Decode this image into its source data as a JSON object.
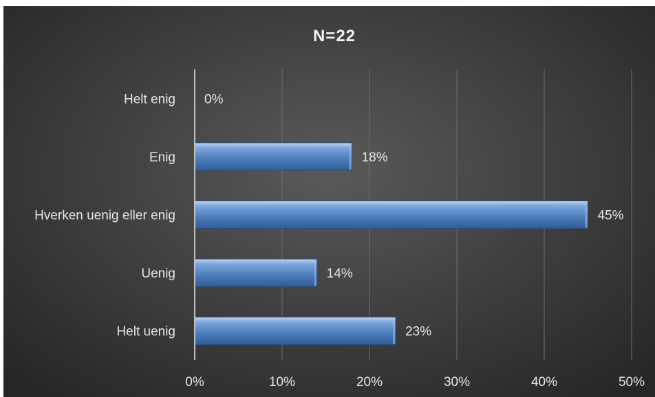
{
  "chart_data": {
    "type": "bar",
    "orientation": "horizontal",
    "title": "N=22",
    "categories": [
      "Helt enig",
      "Enig",
      "Hverken uenig eller enig",
      "Uenig",
      "Helt uenig"
    ],
    "values": [
      0,
      18,
      45,
      14,
      23
    ],
    "data_labels": [
      "0%",
      "18%",
      "45%",
      "14%",
      "23%"
    ],
    "xlim": [
      0,
      50
    ],
    "x_ticks": [
      0,
      10,
      20,
      30,
      40,
      50
    ],
    "x_tick_labels": [
      "0%",
      "10%",
      "20%",
      "30%",
      "40%",
      "50%"
    ],
    "grid": true,
    "legend": "none",
    "colors": {
      "bar": "#4f81bd",
      "bar_light": "#a9c4ea",
      "bar_dark": "#2e5a93",
      "text": "#e6e6e6",
      "grid": "#6e6e6e",
      "axis": "#bfbfbf"
    }
  }
}
